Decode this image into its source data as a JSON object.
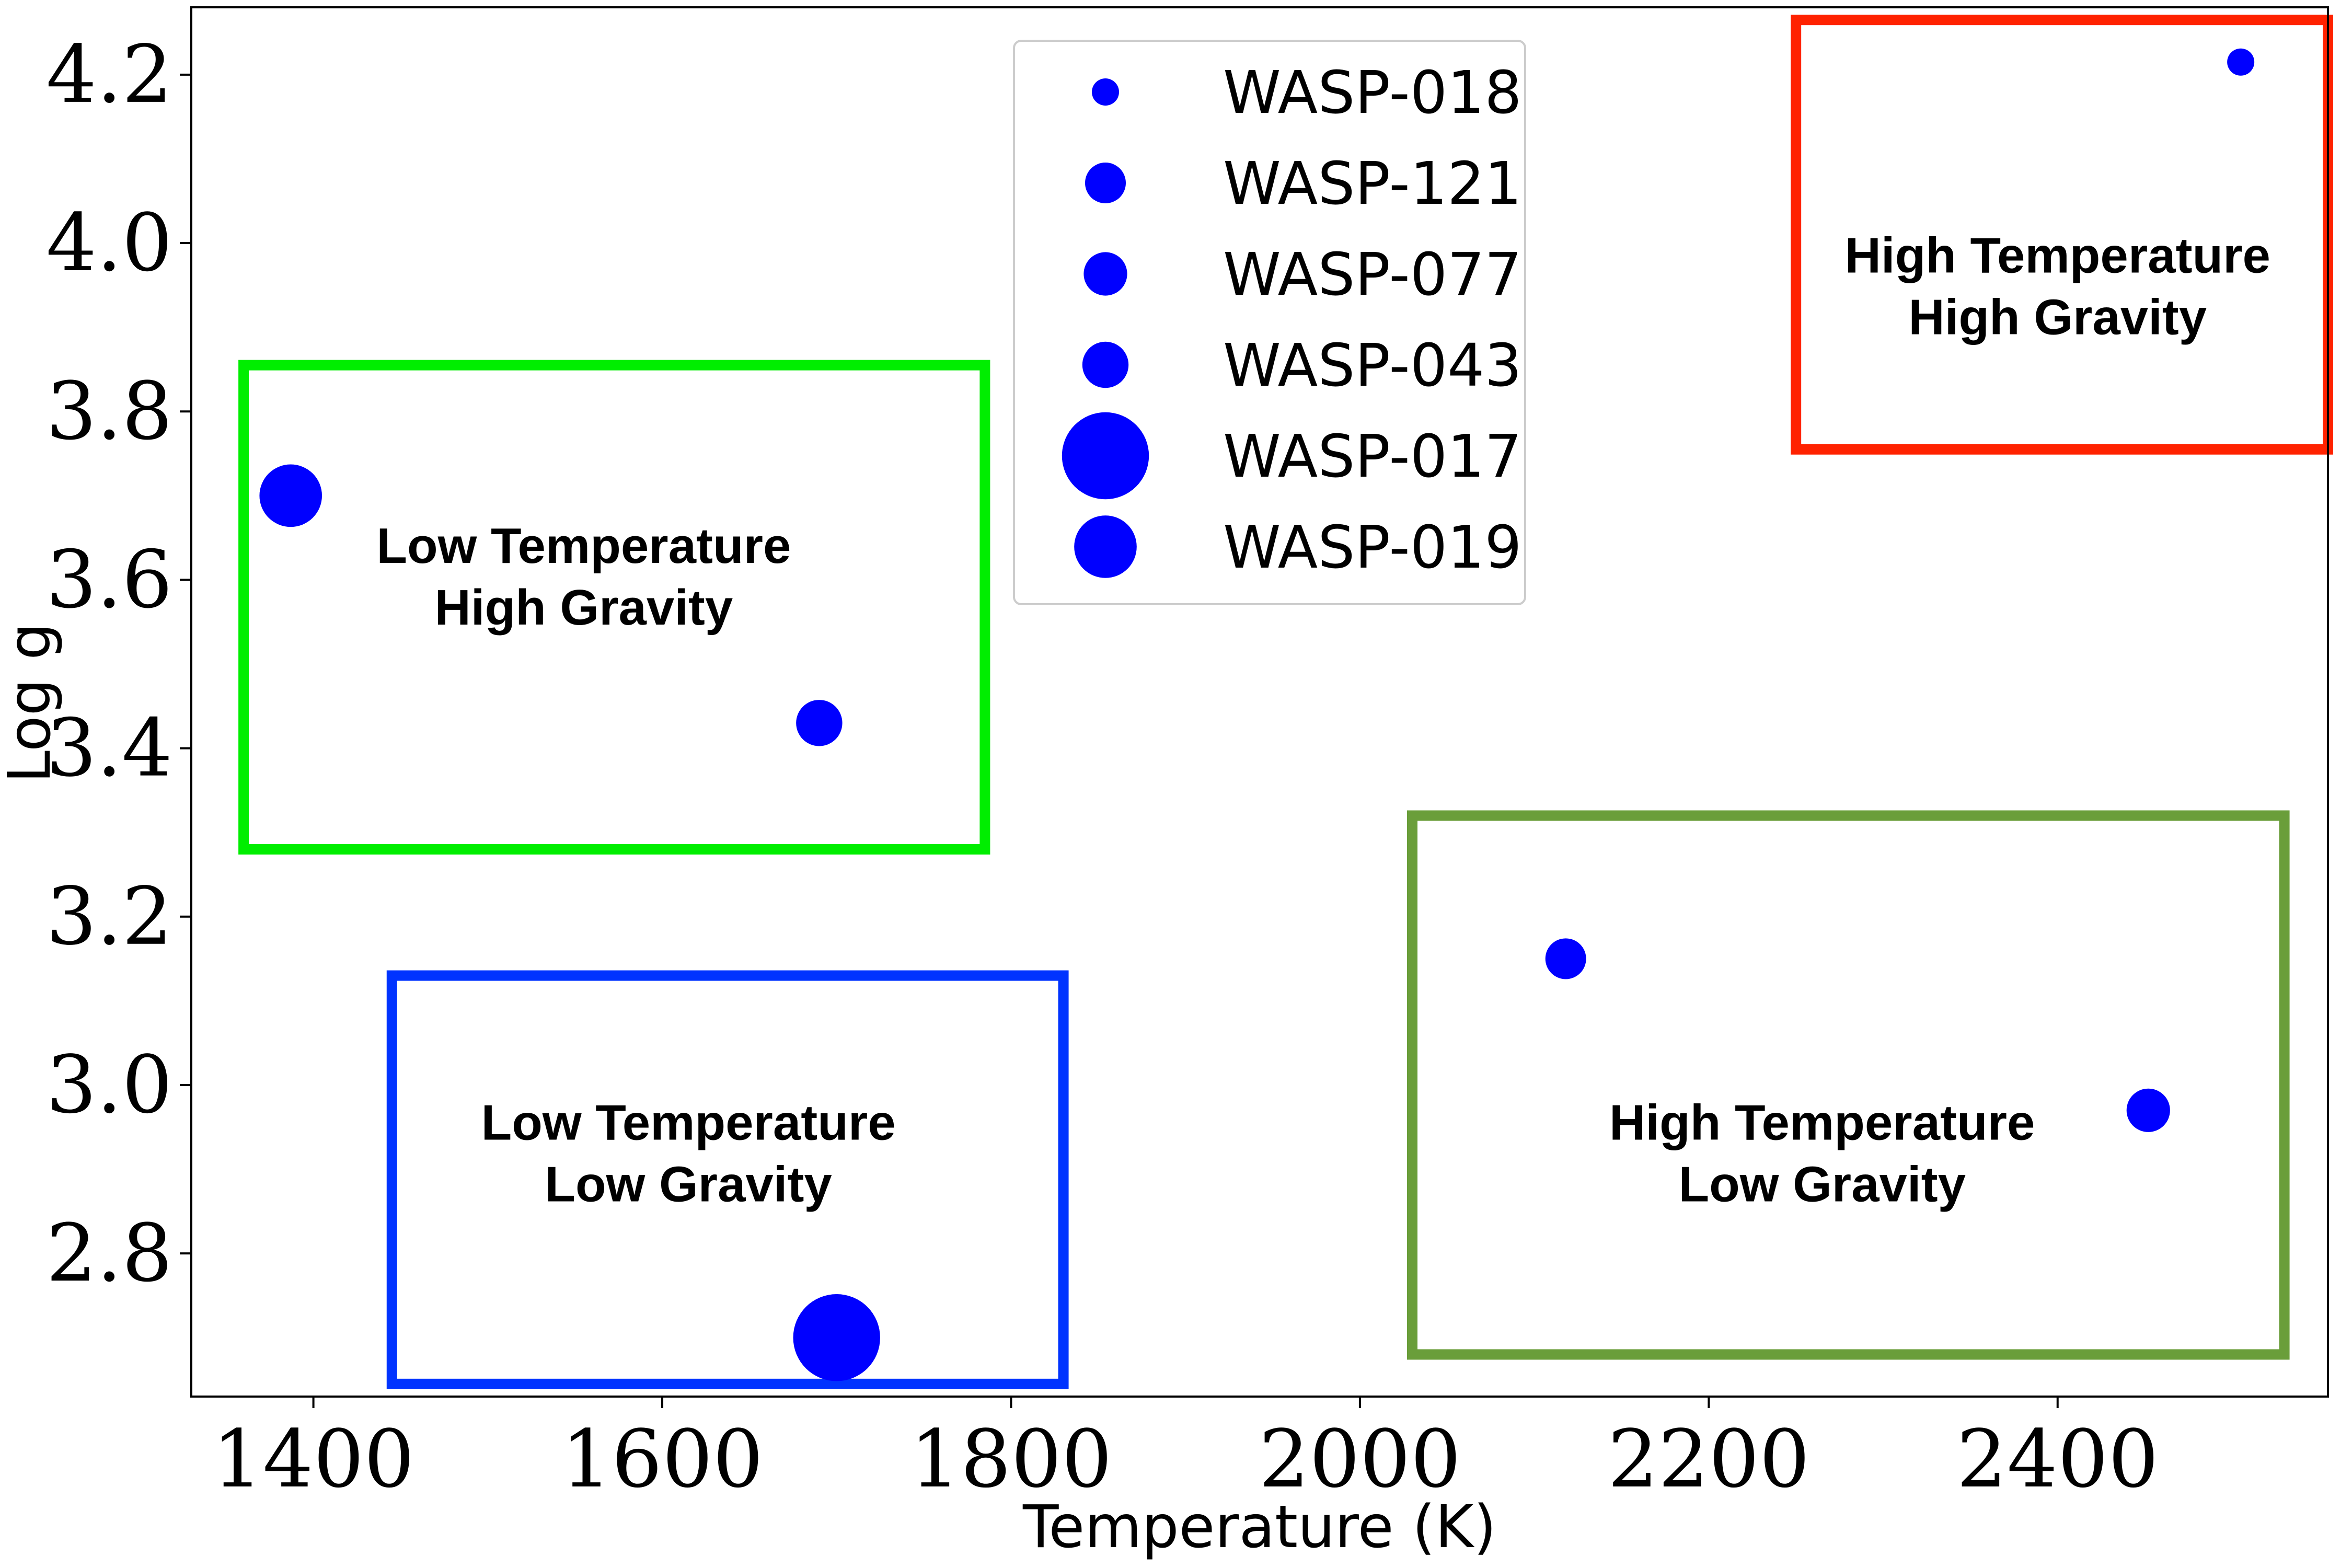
{
  "chart_data": {
    "type": "scatter",
    "title": "",
    "xlabel": "Temperature (K)",
    "ylabel": "Log g",
    "xlim": [
      1330,
      2555
    ],
    "ylim": [
      2.63,
      4.28
    ],
    "xticks": [
      1400,
      1600,
      1800,
      2000,
      2200,
      2400
    ],
    "yticks": [
      2.8,
      3.0,
      3.2,
      3.4,
      3.6,
      3.8,
      4.0,
      4.2
    ],
    "xtick_labels": [
      "1400",
      "1600",
      "1800",
      "2000",
      "2200",
      "2400"
    ],
    "ytick_labels": [
      "2.8",
      "3.0",
      "3.2",
      "3.4",
      "3.6",
      "3.8",
      "4.0",
      "4.2"
    ],
    "grid": false,
    "legend_position": "top-center",
    "series_color": "#0000ff",
    "series": [
      {
        "name": "WASP-018",
        "x": 2505,
        "y": 4.215,
        "marker_size": 1.0
      },
      {
        "name": "WASP-121",
        "x": 2118,
        "y": 3.15,
        "marker_size": 1.5
      },
      {
        "name": "WASP-077",
        "x": 2452,
        "y": 2.97,
        "marker_size": 1.6
      },
      {
        "name": "WASP-043",
        "x": 1690,
        "y": 3.43,
        "marker_size": 1.7
      },
      {
        "name": "WASP-017",
        "x": 1700,
        "y": 2.7,
        "marker_size": 3.2
      },
      {
        "name": "WASP-019",
        "x": 1387,
        "y": 3.7,
        "marker_size": 2.3
      }
    ],
    "regions": [
      {
        "name": "low-temp-high-gravity",
        "lines": [
          "Low Temperature",
          "High Gravity"
        ],
        "color": "#00ee00",
        "x_range": [
          1360,
          1785
        ],
        "y_range": [
          3.28,
          3.855
        ]
      },
      {
        "name": "low-temp-low-gravity",
        "lines": [
          "Low Temperature",
          "Low Gravity"
        ],
        "color": "#0033ff",
        "x_range": [
          1445,
          1830
        ],
        "y_range": [
          2.645,
          3.13
        ]
      },
      {
        "name": "high-temp-high-gravity",
        "lines": [
          "High Temperature",
          "High Gravity"
        ],
        "color": "#ff2200",
        "x_range": [
          2250,
          2555
        ],
        "y_range": [
          3.755,
          4.265
        ]
      },
      {
        "name": "high-temp-low-gravity",
        "lines": [
          "High Temperature",
          "Low Gravity"
        ],
        "color": "#6a9e3a",
        "x_range": [
          2030,
          2530
        ],
        "y_range": [
          2.68,
          3.32
        ]
      }
    ]
  }
}
